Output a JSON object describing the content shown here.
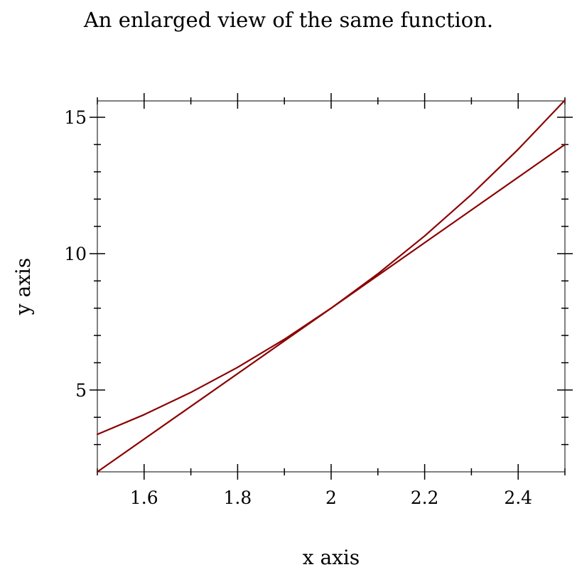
{
  "chart_data": {
    "type": "line",
    "title": "An enlarged view of the same function.",
    "xlabel": "x axis",
    "ylabel": "y axis",
    "xlim": [
      1.5,
      2.5
    ],
    "ylim": [
      2,
      15.6
    ],
    "x_ticks": [
      1.6,
      1.8,
      2,
      2.2,
      2.4
    ],
    "x_tick_labels": [
      "1.6",
      "1.8",
      "2",
      "2.2",
      "2.4"
    ],
    "x_minor_ticks": [
      1.5,
      1.7,
      1.9,
      2.1,
      2.3,
      2.5
    ],
    "y_ticks": [
      5,
      10,
      15
    ],
    "y_tick_labels": [
      "5",
      "10",
      "15"
    ],
    "y_minor_ticks": [
      3,
      4,
      6,
      7,
      8,
      9,
      11,
      12,
      13,
      14
    ],
    "grid": false,
    "line_color": "#8b0000",
    "series": [
      {
        "x": [
          1.5,
          1.6,
          1.7,
          1.8,
          1.9,
          2.0,
          2.1,
          2.2,
          2.3,
          2.4,
          2.5
        ],
        "y": [
          3.375,
          4.096,
          4.913,
          5.832,
          6.859,
          8.0,
          9.261,
          10.648,
          12.167,
          13.824,
          15.625
        ]
      },
      {
        "x": [
          1.5,
          2.5
        ],
        "y": [
          2.0,
          14.0
        ]
      }
    ]
  }
}
